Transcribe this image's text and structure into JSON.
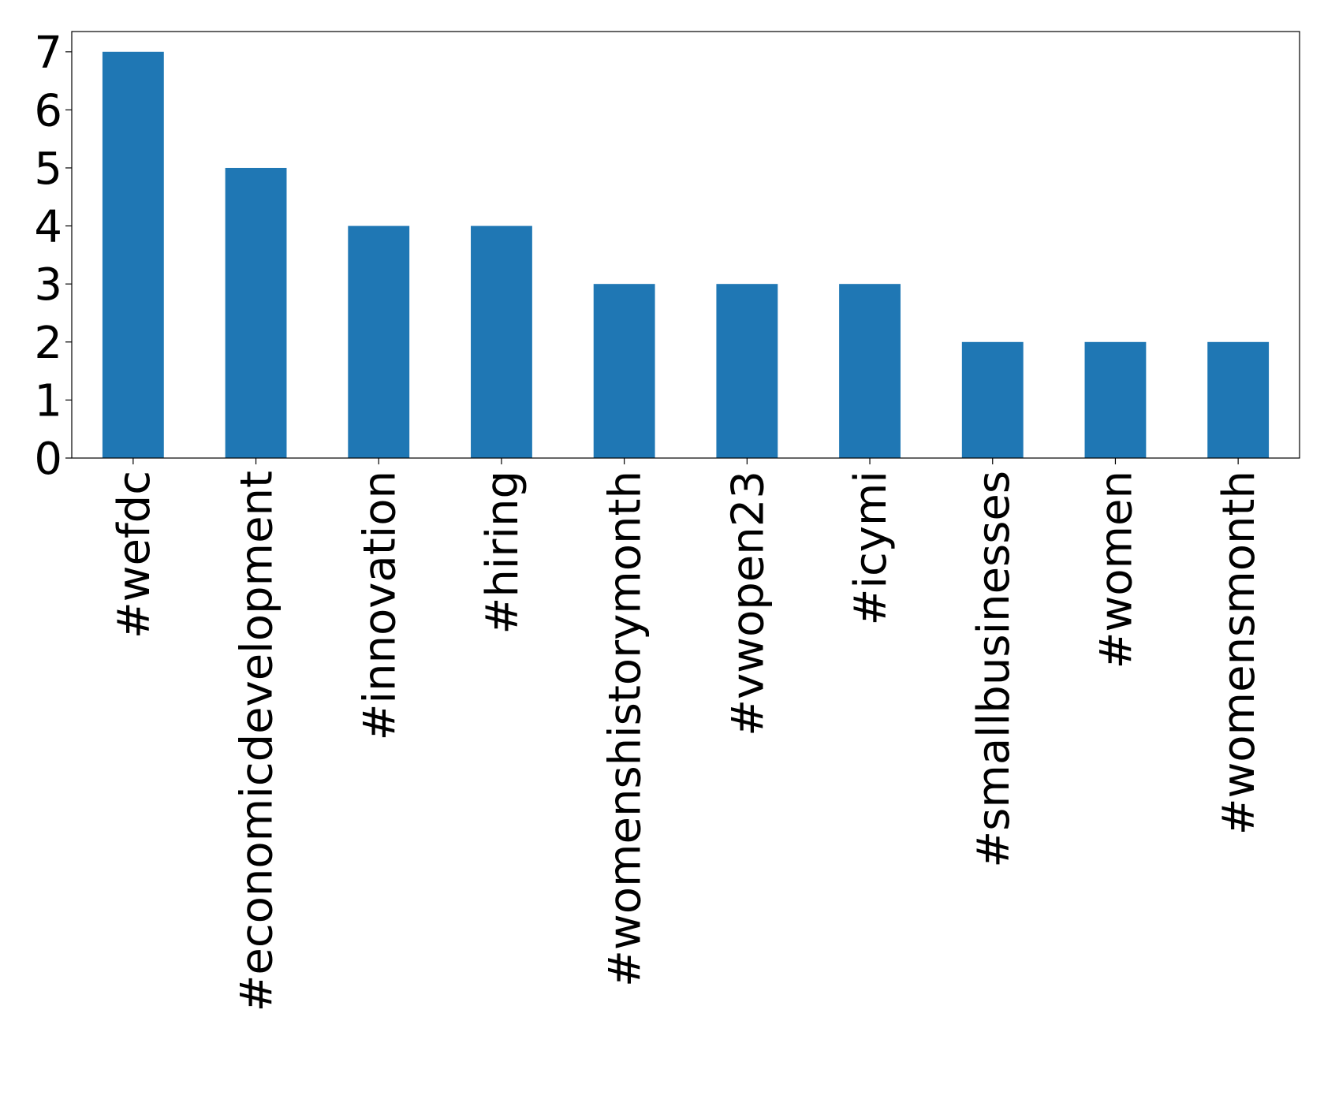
{
  "chart_data": {
    "type": "bar",
    "categories": [
      "#wefdc",
      "#economicdevelopment",
      "#innovation",
      "#hiring",
      "#womenshistorymonth",
      "#vwopen23",
      "#icymi",
      "#smallbusinesses",
      "#women",
      "#womensmonth"
    ],
    "values": [
      7,
      5,
      4,
      4,
      3,
      3,
      3,
      2,
      2,
      2
    ],
    "color": "#1f77b4",
    "ylim": [
      0,
      7.35
    ],
    "yticks": [
      0,
      1,
      2,
      3,
      4,
      5,
      6,
      7
    ],
    "grid": false
  }
}
